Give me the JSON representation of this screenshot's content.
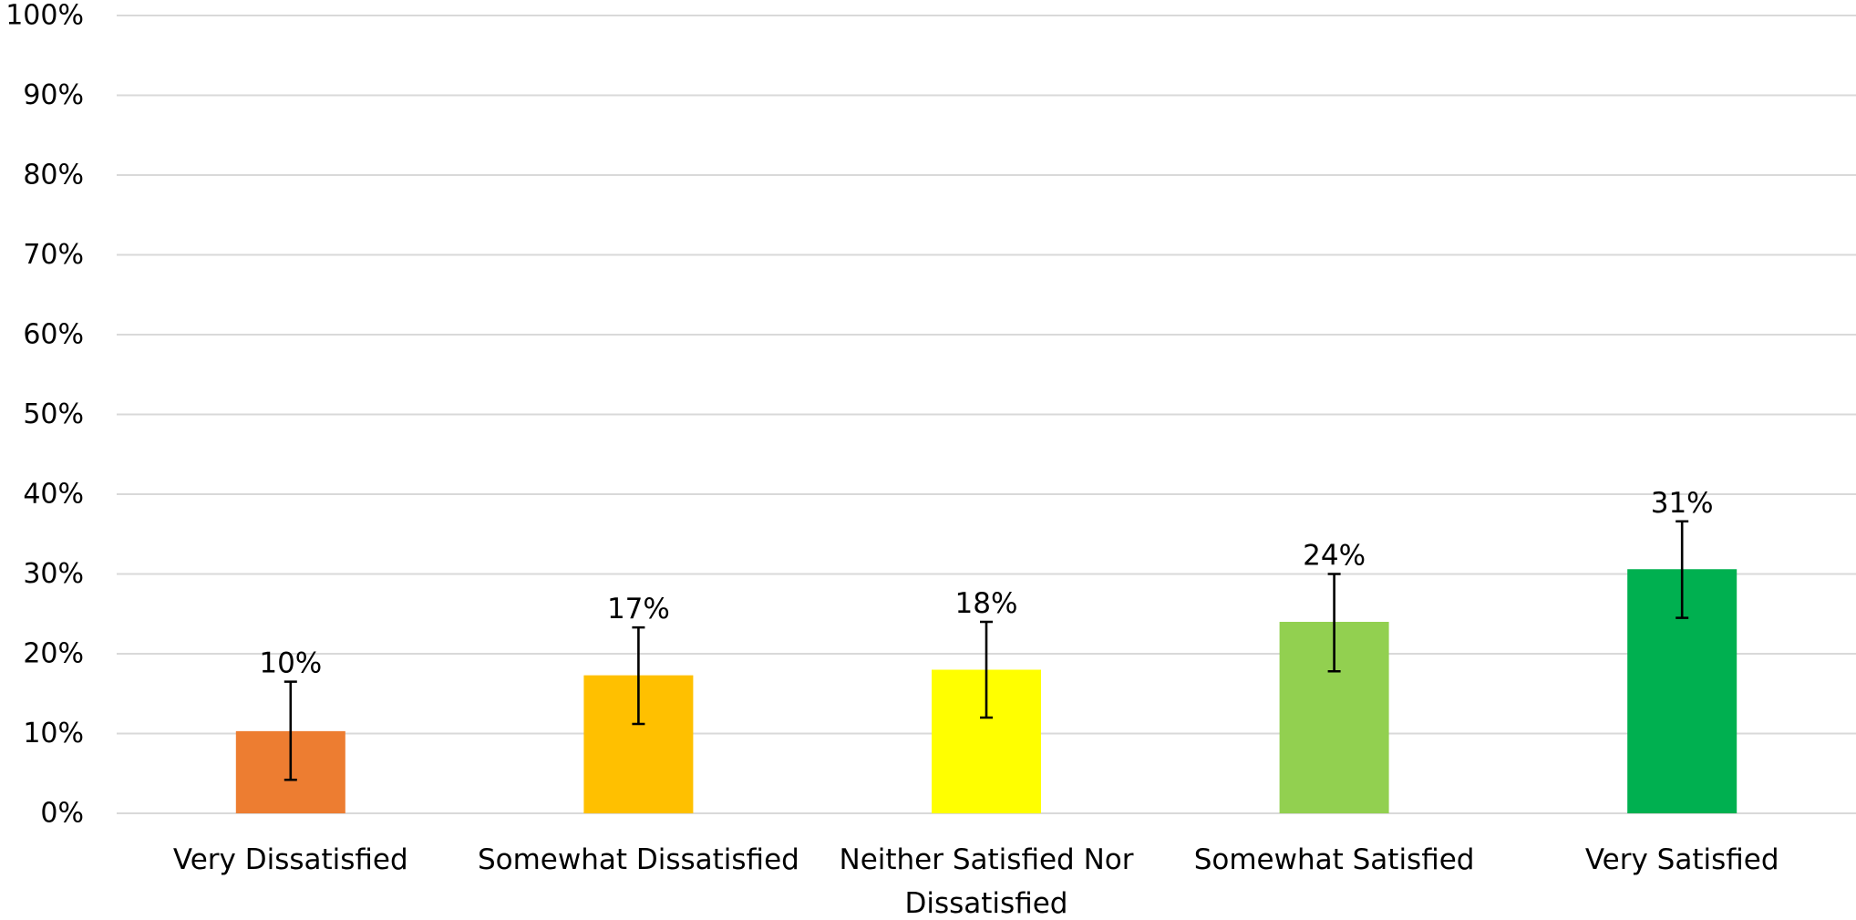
{
  "chart_data": {
    "type": "bar",
    "title": "",
    "xlabel": "",
    "ylabel": "",
    "ylim": [
      0,
      100
    ],
    "y_ticks": [
      0,
      10,
      20,
      30,
      40,
      50,
      60,
      70,
      80,
      90,
      100
    ],
    "y_tick_format": "percent",
    "grid": true,
    "legend": "none",
    "categories": [
      [
        "Very Dissatisfied"
      ],
      [
        "Somewhat Dissatisfied"
      ],
      [
        "Neither Satisfied Nor",
        "Dissatisfied"
      ],
      [
        "Somewhat Satisfied"
      ],
      [
        "Very Satisfied"
      ]
    ],
    "values": [
      10.3,
      17.3,
      18.0,
      24.0,
      30.6
    ],
    "data_labels": [
      "10%",
      "17%",
      "18%",
      "24%",
      "31%"
    ],
    "error_bars": [
      {
        "low": 4.2,
        "high": 16.5
      },
      {
        "low": 11.2,
        "high": 23.3
      },
      {
        "low": 12.0,
        "high": 24.0
      },
      {
        "low": 17.8,
        "high": 30.0
      },
      {
        "low": 24.5,
        "high": 36.6
      }
    ],
    "colors": [
      "#ED7D31",
      "#FFC000",
      "#FFFF00",
      "#92D050",
      "#00B050"
    ]
  }
}
